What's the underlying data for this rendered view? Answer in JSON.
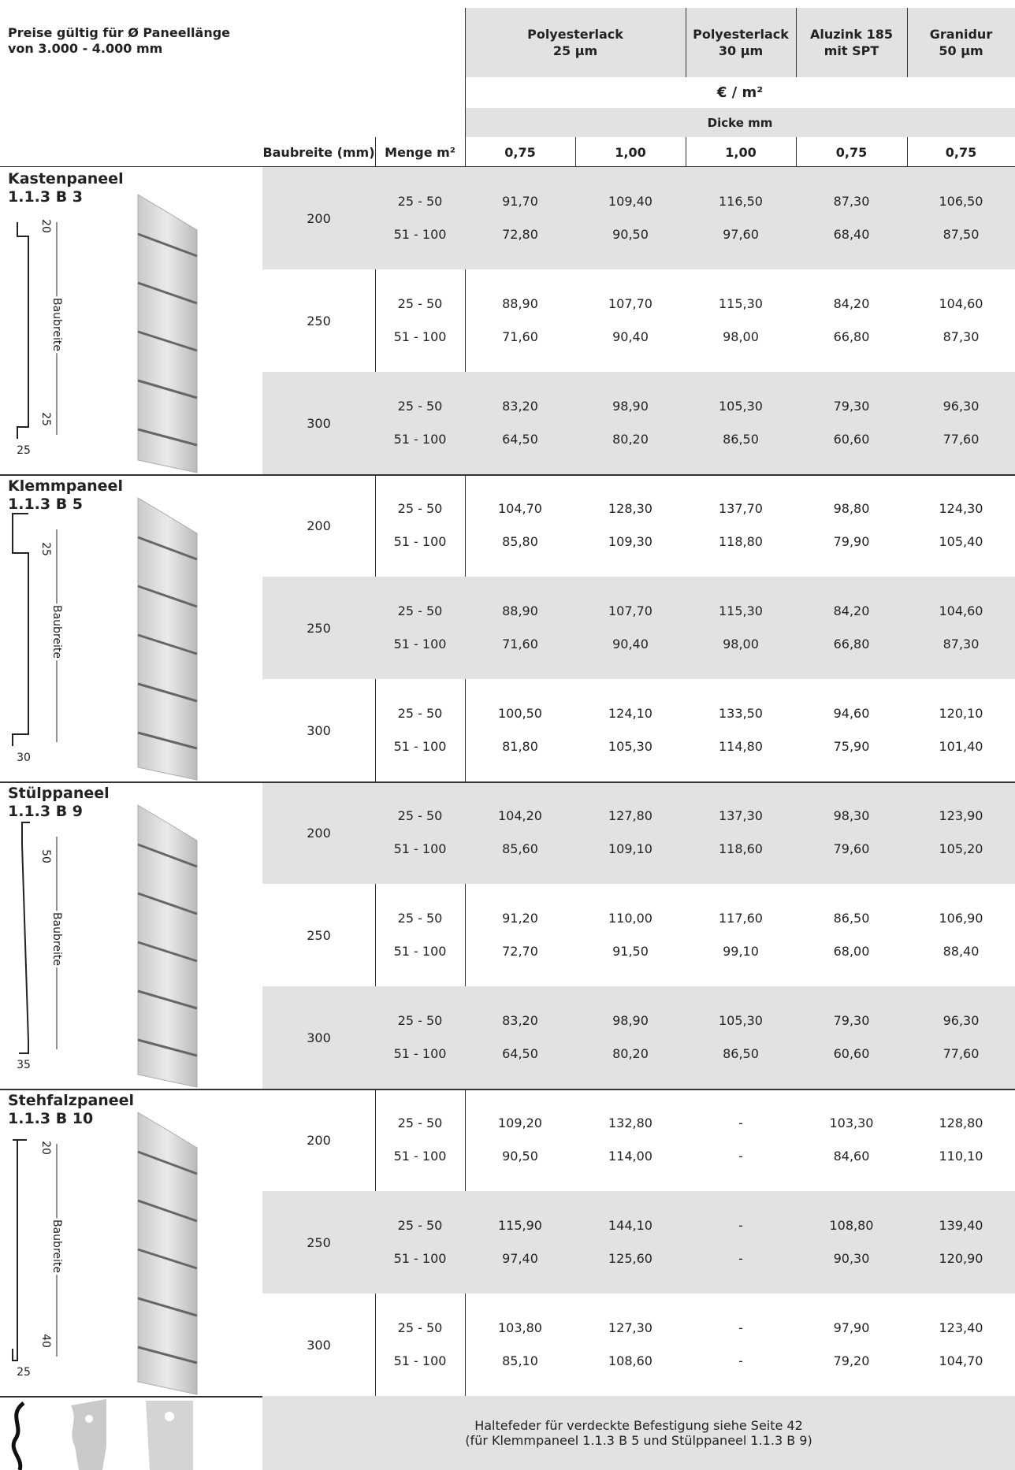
{
  "header": {
    "note": [
      "Preise gültig für Ø Paneellänge",
      "von 3.000 - 4.000 mm"
    ],
    "coatings": [
      "Polyesterlack\n25 µm",
      "Polyesterlack\n30 µm",
      "Aluzink 185\nmit SPT",
      "Granidur\n50 µm"
    ],
    "unit": "€ / m²",
    "thickness_label": "Dicke mm",
    "columns": [
      "Baubreite (mm)",
      "Menge m²",
      "0,75",
      "1,00",
      "1,00",
      "0,75",
      "0,75"
    ]
  },
  "products": [
    {
      "name": "Kastenpaneel",
      "code": "1.1.3 B 3",
      "dims": [
        "20",
        "Baubreite",
        "25",
        "25"
      ],
      "rows": [
        {
          "width": "200",
          "tiers": [
            {
              "qty": "25 - 50",
              "prices": [
                "91,70",
                "109,40",
                "116,50",
                "87,30",
                "106,50"
              ]
            },
            {
              "qty": "51 - 100",
              "prices": [
                "72,80",
                "90,50",
                "97,60",
                "68,40",
                "87,50"
              ]
            }
          ]
        },
        {
          "width": "250",
          "tiers": [
            {
              "qty": "25 - 50",
              "prices": [
                "88,90",
                "107,70",
                "115,30",
                "84,20",
                "104,60"
              ]
            },
            {
              "qty": "51 - 100",
              "prices": [
                "71,60",
                "90,40",
                "98,00",
                "66,80",
                "87,30"
              ]
            }
          ]
        },
        {
          "width": "300",
          "tiers": [
            {
              "qty": "25 - 50",
              "prices": [
                "83,20",
                "98,90",
                "105,30",
                "79,30",
                "96,30"
              ]
            },
            {
              "qty": "51 - 100",
              "prices": [
                "64,50",
                "80,20",
                "86,50",
                "60,60",
                "77,60"
              ]
            }
          ]
        }
      ]
    },
    {
      "name": "Klemmpaneel",
      "code": "1.1.3 B 5",
      "dims": [
        "25",
        "Baubreite",
        "30"
      ],
      "rows": [
        {
          "width": "200",
          "tiers": [
            {
              "qty": "25 - 50",
              "prices": [
                "104,70",
                "128,30",
                "137,70",
                "98,80",
                "124,30"
              ]
            },
            {
              "qty": "51 - 100",
              "prices": [
                "85,80",
                "109,30",
                "118,80",
                "79,90",
                "105,40"
              ]
            }
          ]
        },
        {
          "width": "250",
          "tiers": [
            {
              "qty": "25 - 50",
              "prices": [
                "88,90",
                "107,70",
                "115,30",
                "84,20",
                "104,60"
              ]
            },
            {
              "qty": "51 - 100",
              "prices": [
                "71,60",
                "90,40",
                "98,00",
                "66,80",
                "87,30"
              ]
            }
          ]
        },
        {
          "width": "300",
          "tiers": [
            {
              "qty": "25 - 50",
              "prices": [
                "100,50",
                "124,10",
                "133,50",
                "94,60",
                "120,10"
              ]
            },
            {
              "qty": "51 - 100",
              "prices": [
                "81,80",
                "105,30",
                "114,80",
                "75,90",
                "101,40"
              ]
            }
          ]
        }
      ]
    },
    {
      "name": "Stülppaneel",
      "code": "1.1.3 B 9",
      "dims": [
        "50",
        "Baubreite",
        "35"
      ],
      "rows": [
        {
          "width": "200",
          "tiers": [
            {
              "qty": "25 - 50",
              "prices": [
                "104,20",
                "127,80",
                "137,30",
                "98,30",
                "123,90"
              ]
            },
            {
              "qty": "51 - 100",
              "prices": [
                "85,60",
                "109,10",
                "118,60",
                "79,60",
                "105,20"
              ]
            }
          ]
        },
        {
          "width": "250",
          "tiers": [
            {
              "qty": "25 - 50",
              "prices": [
                "91,20",
                "110,00",
                "117,60",
                "86,50",
                "106,90"
              ]
            },
            {
              "qty": "51 - 100",
              "prices": [
                "72,70",
                "91,50",
                "99,10",
                "68,00",
                "88,40"
              ]
            }
          ]
        },
        {
          "width": "300",
          "tiers": [
            {
              "qty": "25 - 50",
              "prices": [
                "83,20",
                "98,90",
                "105,30",
                "79,30",
                "96,30"
              ]
            },
            {
              "qty": "51 - 100",
              "prices": [
                "64,50",
                "80,20",
                "86,50",
                "60,60",
                "77,60"
              ]
            }
          ]
        }
      ]
    },
    {
      "name": "Stehfalzpaneel",
      "code": "1.1.3 B 10",
      "dims": [
        "20",
        "Baubreite",
        "40",
        "25"
      ],
      "rows": [
        {
          "width": "200",
          "tiers": [
            {
              "qty": "25 - 50",
              "prices": [
                "109,20",
                "132,80",
                "-",
                "103,30",
                "128,80"
              ]
            },
            {
              "qty": "51 - 100",
              "prices": [
                "90,50",
                "114,00",
                "-",
                "84,60",
                "110,10"
              ]
            }
          ]
        },
        {
          "width": "250",
          "tiers": [
            {
              "qty": "25 - 50",
              "prices": [
                "115,90",
                "144,10",
                "-",
                "108,80",
                "139,40"
              ]
            },
            {
              "qty": "51 - 100",
              "prices": [
                "97,40",
                "125,60",
                "-",
                "90,30",
                "120,90"
              ]
            }
          ]
        },
        {
          "width": "300",
          "tiers": [
            {
              "qty": "25 - 50",
              "prices": [
                "103,80",
                "127,30",
                "-",
                "97,90",
                "123,40"
              ]
            },
            {
              "qty": "51 - 100",
              "prices": [
                "85,10",
                "108,60",
                "-",
                "79,20",
                "104,70"
              ]
            }
          ]
        }
      ]
    }
  ],
  "footer": [
    "Haltefeder für verdeckte Befestigung siehe Seite 42",
    "(für Klemmpaneel 1.1.3 B 5 und Stülppaneel 1.1.3 B 9)"
  ]
}
